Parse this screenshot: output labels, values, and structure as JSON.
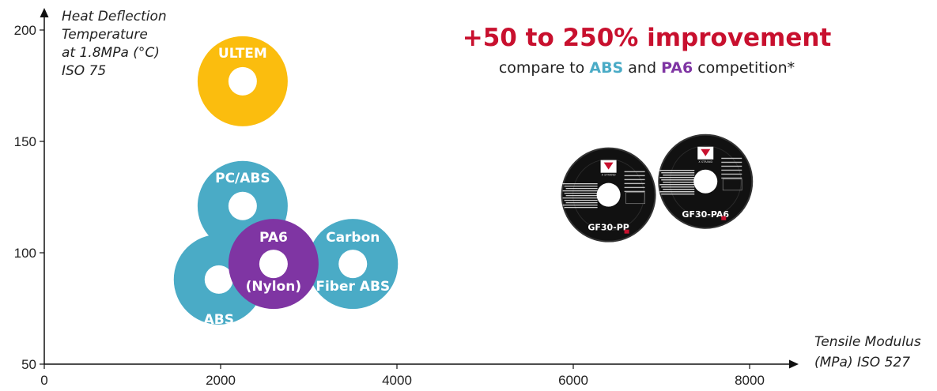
{
  "chart_data": {
    "type": "scatter",
    "x_title": [
      "Tensile Modulus",
      "(MPa) ISO 527"
    ],
    "y_title": [
      "Heat Deflection",
      "Temperature",
      "at 1.8MPa (°C)",
      "ISO 75"
    ],
    "xlim": [
      0,
      8500
    ],
    "ylim": [
      50,
      210
    ],
    "x_ticks": [
      "0",
      "2000",
      "4000",
      "6000",
      "8000"
    ],
    "y_ticks": [
      "50",
      "100",
      "150",
      "200"
    ],
    "points": [
      {
        "name": "ULTEM",
        "label_lines": [
          "ULTEM"
        ],
        "x": 2250,
        "y": 177,
        "color": "#fbbd0e"
      },
      {
        "name": "PC/ABS",
        "label_lines": [
          "PC/ABS"
        ],
        "x": 2250,
        "y": 121,
        "color": "#4aabc6"
      },
      {
        "name": "ABS",
        "label_lines": [
          "ABS"
        ],
        "x": 1980,
        "y": 88,
        "color": "#4aabc6"
      },
      {
        "name": "Carbon Fiber ABS",
        "label_lines": [
          "Carbon",
          "Fiber ABS"
        ],
        "x": 3500,
        "y": 95,
        "color": "#4aabc6"
      },
      {
        "name": "PA6 (Nylon)",
        "label_lines": [
          "PA6",
          "(Nylon)"
        ],
        "x": 2600,
        "y": 95,
        "color": "#7f35a3"
      }
    ],
    "products": [
      {
        "name": "GF30-PP",
        "brand": "X STRAND",
        "x": 6400,
        "y": 126
      },
      {
        "name": "GF30-PA6",
        "brand": "X STRAND",
        "x": 7500,
        "y": 132
      }
    ]
  },
  "headline": {
    "title": "+50 to 250% improvement",
    "sub_prefix": "compare to ",
    "sub_abs": "ABS",
    "sub_and": " and ",
    "sub_pa6": "PA6",
    "sub_suffix": " competition*"
  },
  "colors": {
    "headline": "#c8102e",
    "abs": "#4aabc6",
    "pa6": "#7f35a3",
    "ultem": "#fbbd0e",
    "spool": "#111111"
  }
}
